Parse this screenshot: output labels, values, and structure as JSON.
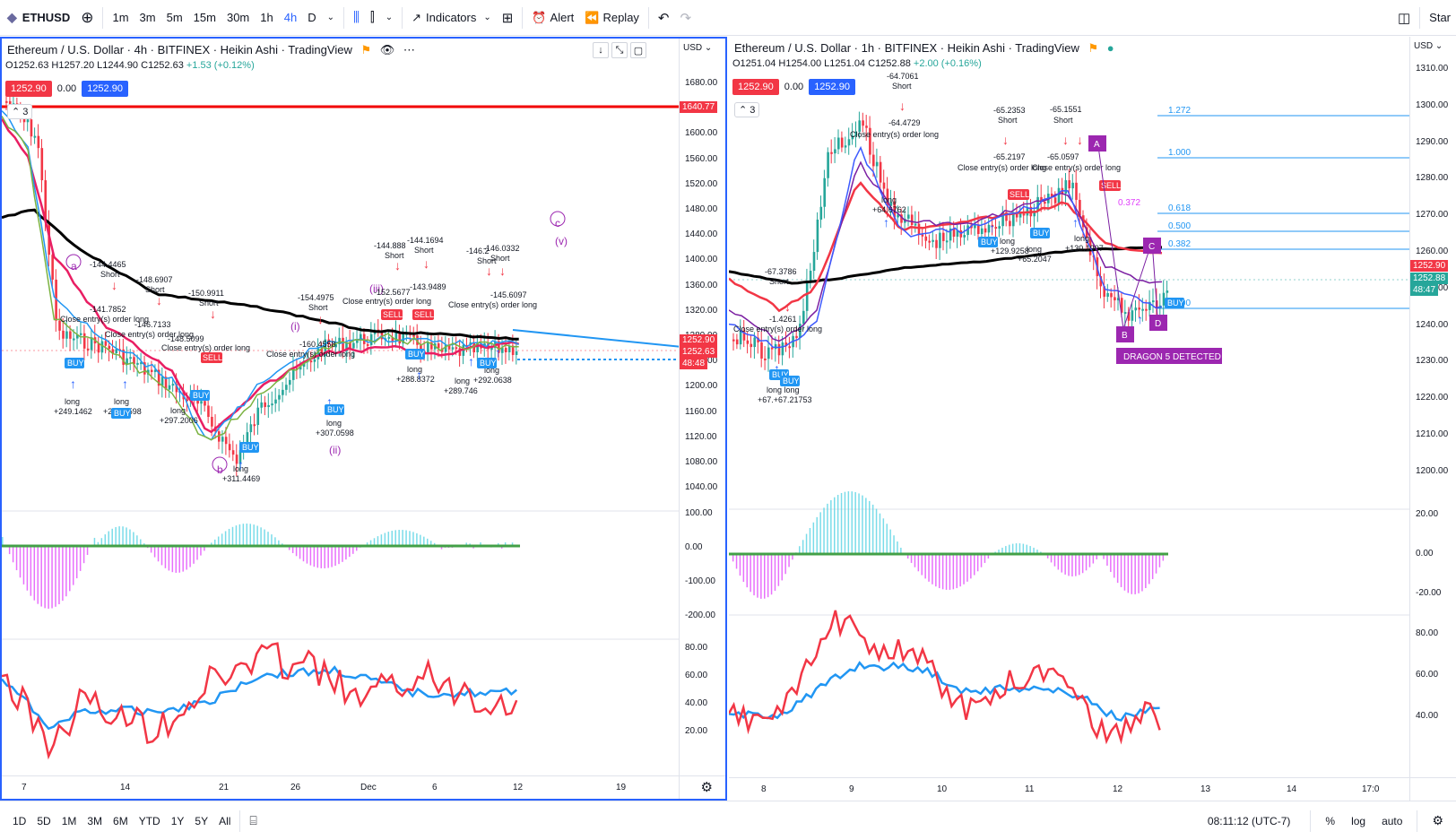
{
  "toolbar": {
    "symbol": "ETHUSD",
    "timeframes": [
      "1m",
      "3m",
      "5m",
      "15m",
      "30m",
      "1h",
      "4h",
      "D"
    ],
    "active_timeframe": "4h",
    "indicators_label": "Indicators",
    "alert_label": "Alert",
    "replay_label": "Replay",
    "right_label": "Star"
  },
  "left": {
    "title": "Ethereum / U.S. Dollar · 4h · BITFINEX · Heikin Ashi · TradingView",
    "ohlc_o": "O1252.63",
    "ohlc_h": "H1257.20",
    "ohlc_l": "L1244.90",
    "ohlc_c": "C1252.63",
    "ohlc_chg": "+1.53 (+0.12%)",
    "tag_red": "1252.90",
    "tag_mid": "0.00",
    "tag_blue": "1252.90",
    "collapse": "3",
    "currency": "USD",
    "price_ticks": [
      "1680.00",
      "1640.00",
      "1600.00",
      "1560.00",
      "1520.00",
      "1480.00",
      "1440.00",
      "1400.00",
      "1360.00",
      "1320.00",
      "1280.00",
      "1240.00",
      "1200.00",
      "1160.00",
      "1120.00",
      "1080.00",
      "1040.00"
    ],
    "axis_tags": {
      "red_line": "1640.77",
      "p1": "1252.90",
      "p2": "1252.63",
      "p3": "48:48"
    },
    "osc_ticks": [
      "100.00",
      "0.00",
      "-100.00",
      "-200.00"
    ],
    "rsi_ticks": [
      "80.00",
      "60.00",
      "40.00",
      "20.00"
    ],
    "time_labels": [
      "7",
      "14",
      "21",
      "26",
      "Dec",
      "6",
      "12",
      "19"
    ],
    "waves": [
      "a",
      "b",
      "c",
      "(v)",
      "(i)",
      "(ii)",
      "(iii)"
    ],
    "signals": {
      "s1": "-144.4465",
      "s1b": "Short",
      "s2": "-148.6907",
      "s2b": "Short",
      "s3": "-150.9911",
      "s3b": "Short",
      "s4": "-141.7852",
      "s5": "-146.7133",
      "s6": "-148.5099",
      "s7": "-154.4975",
      "s7b": "Short",
      "s8": "-160.4558",
      "s9": "-144.888",
      "s9b": "Short",
      "s10": "-144.1694",
      "s10b": "Short",
      "s11": "-143.9489",
      "s12": "-152.5677",
      "s13": "-146.2",
      "s13b": "Short",
      "s14": "-146.0332",
      "s14b": "Short",
      "s15": "-145.6097",
      "c1": "Close entry(s) order long",
      "c2": "Close entry(s) order long",
      "c3": "Close entry(s) order long",
      "c4": "Close entry(s) order long",
      "c5": "Close entry(s) order long",
      "c6": "Close entry(s) order long",
      "l1": "long",
      "l1v": "+249.1462",
      "l2": "long",
      "l2v": "+291.3598",
      "l3": "long",
      "l3v": "+297.2006",
      "l4": "long",
      "l4v": "+311.4469",
      "l5": "long",
      "l5v": "+307.0598",
      "l6": "long",
      "l6v": "+288.8372",
      "l7": "long",
      "l7v": "+289.746",
      "l8": "long",
      "l8v": "+292.0638",
      "buy": "BUY",
      "sell": "SELL"
    }
  },
  "right": {
    "title": "Ethereum / U.S. Dollar · 1h · BITFINEX · Heikin Ashi · TradingView",
    "ohlc_o": "O1251.04",
    "ohlc_h": "H1254.00",
    "ohlc_l": "L1251.04",
    "ohlc_c": "C1252.88",
    "ohlc_chg": "+2.00 (+0.16%)",
    "tag_red": "1252.90",
    "tag_mid": "0.00",
    "tag_blue": "1252.90",
    "collapse": "3",
    "currency": "USD",
    "price_ticks": [
      "1310.00",
      "1300.00",
      "1290.00",
      "1280.00",
      "1270.00",
      "1260.00",
      "1250.00",
      "1240.00",
      "1230.00",
      "1220.00",
      "1210.00",
      "1200.00"
    ],
    "axis_tags": {
      "p1": "1252.90",
      "p2": "1252.88",
      "p3": "48:47"
    },
    "osc_ticks": [
      "20.00",
      "0.00",
      "-20.00"
    ],
    "rsi_ticks": [
      "80.00",
      "60.00",
      "40.00"
    ],
    "time_labels": [
      "8",
      "9",
      "10",
      "11",
      "12",
      "13",
      "14",
      "17:0"
    ],
    "fib": [
      "1.272",
      "1.000",
      "0.618",
      "0.500",
      "0.382",
      "0.000"
    ],
    "fib_extra": "0.372",
    "harmonic": [
      "A",
      "B",
      "C",
      "D"
    ],
    "dragon": "DRAGON 5 DETECTED",
    "signals": {
      "s1": "-64.7061",
      "s1b": "Short",
      "s2": "-64.4729",
      "s3": "-65.2353",
      "s3b": "Short",
      "s4": "-65.1551",
      "s4b": "Short",
      "s5": "-65.2197",
      "s6": "-65.0597",
      "s7": "-67.3786",
      "s7b": "Short",
      "s8": "-1.4261",
      "c1": "Close entry(s) order long",
      "c2": "Close entry(s) order long",
      "c3": "Close entry(s) order long",
      "c4": "Close entry(s) order long",
      "l1": "long",
      "l1v": "+64.6762",
      "l2": "long",
      "l2v": "+129.9258",
      "l3": "long",
      "l3v": "+65.2047",
      "l4": "long",
      "l4v": "+130.1907",
      "l5": "long long",
      "l5v": "+67.+67.21753",
      "buy": "BUY",
      "sell": "SELL"
    }
  },
  "bottombar": {
    "ranges": [
      "1D",
      "5D",
      "1M",
      "3M",
      "6M",
      "YTD",
      "1Y",
      "5Y",
      "All"
    ],
    "time": "08:11:12 (UTC-7)",
    "pct": "%",
    "log": "log",
    "auto": "auto"
  },
  "colors": {
    "accent": "#2962ff",
    "up": "#26a69a",
    "down": "#f23645",
    "purple": "#9c27b0",
    "black_ma": "#000000"
  }
}
